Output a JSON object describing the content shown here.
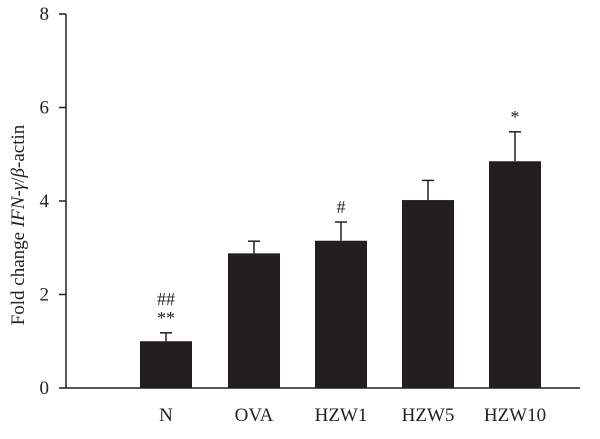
{
  "chart_data": {
    "type": "bar",
    "categories": [
      "N",
      "OVA",
      "HZW1",
      "HZW5",
      "HZW10"
    ],
    "values": [
      1.0,
      2.88,
      3.15,
      4.02,
      4.85
    ],
    "errors": [
      0.18,
      0.26,
      0.4,
      0.42,
      0.63
    ],
    "annotations": [
      [
        "##",
        "**"
      ],
      [],
      [
        "#"
      ],
      [],
      [
        "*"
      ]
    ],
    "ylabel_prefix": "Fold change ",
    "ylabel_italic_1": "IFN",
    "ylabel_mid": "-",
    "ylabel_italic_2": "γ",
    "ylabel_mid_2": "/",
    "ylabel_italic_3": "β",
    "ylabel_suffix": "-actin",
    "ylim": [
      0,
      8
    ],
    "yticks": [
      0,
      2,
      4,
      6,
      8
    ],
    "bar_color": "#231f20",
    "axis_color": "#231f20"
  }
}
